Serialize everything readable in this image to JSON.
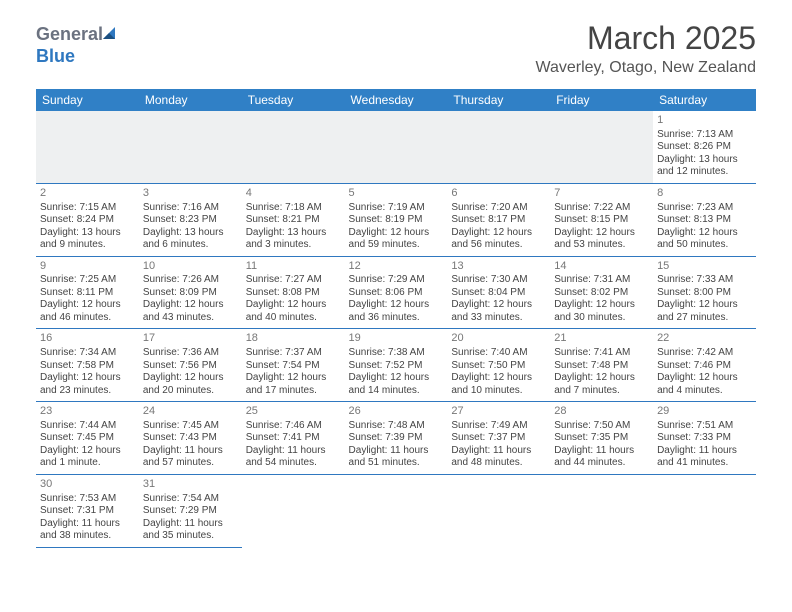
{
  "brand": {
    "general": "General",
    "blue": "Blue"
  },
  "title": "March 2025",
  "location": "Waverley, Otago, New Zealand",
  "colors": {
    "header_bg": "#3080c6",
    "header_text": "#ffffff",
    "border": "#2f78c0",
    "blank_bg": "#eef0f1",
    "text": "#444444",
    "daynum": "#777777"
  },
  "weekdays": [
    "Sunday",
    "Monday",
    "Tuesday",
    "Wednesday",
    "Thursday",
    "Friday",
    "Saturday"
  ],
  "weeks": [
    [
      null,
      null,
      null,
      null,
      null,
      null,
      {
        "day": "1",
        "sunrise": "Sunrise: 7:13 AM",
        "sunset": "Sunset: 8:26 PM",
        "daylight1": "Daylight: 13 hours",
        "daylight2": "and 12 minutes."
      }
    ],
    [
      {
        "day": "2",
        "sunrise": "Sunrise: 7:15 AM",
        "sunset": "Sunset: 8:24 PM",
        "daylight1": "Daylight: 13 hours",
        "daylight2": "and 9 minutes."
      },
      {
        "day": "3",
        "sunrise": "Sunrise: 7:16 AM",
        "sunset": "Sunset: 8:23 PM",
        "daylight1": "Daylight: 13 hours",
        "daylight2": "and 6 minutes."
      },
      {
        "day": "4",
        "sunrise": "Sunrise: 7:18 AM",
        "sunset": "Sunset: 8:21 PM",
        "daylight1": "Daylight: 13 hours",
        "daylight2": "and 3 minutes."
      },
      {
        "day": "5",
        "sunrise": "Sunrise: 7:19 AM",
        "sunset": "Sunset: 8:19 PM",
        "daylight1": "Daylight: 12 hours",
        "daylight2": "and 59 minutes."
      },
      {
        "day": "6",
        "sunrise": "Sunrise: 7:20 AM",
        "sunset": "Sunset: 8:17 PM",
        "daylight1": "Daylight: 12 hours",
        "daylight2": "and 56 minutes."
      },
      {
        "day": "7",
        "sunrise": "Sunrise: 7:22 AM",
        "sunset": "Sunset: 8:15 PM",
        "daylight1": "Daylight: 12 hours",
        "daylight2": "and 53 minutes."
      },
      {
        "day": "8",
        "sunrise": "Sunrise: 7:23 AM",
        "sunset": "Sunset: 8:13 PM",
        "daylight1": "Daylight: 12 hours",
        "daylight2": "and 50 minutes."
      }
    ],
    [
      {
        "day": "9",
        "sunrise": "Sunrise: 7:25 AM",
        "sunset": "Sunset: 8:11 PM",
        "daylight1": "Daylight: 12 hours",
        "daylight2": "and 46 minutes."
      },
      {
        "day": "10",
        "sunrise": "Sunrise: 7:26 AM",
        "sunset": "Sunset: 8:09 PM",
        "daylight1": "Daylight: 12 hours",
        "daylight2": "and 43 minutes."
      },
      {
        "day": "11",
        "sunrise": "Sunrise: 7:27 AM",
        "sunset": "Sunset: 8:08 PM",
        "daylight1": "Daylight: 12 hours",
        "daylight2": "and 40 minutes."
      },
      {
        "day": "12",
        "sunrise": "Sunrise: 7:29 AM",
        "sunset": "Sunset: 8:06 PM",
        "daylight1": "Daylight: 12 hours",
        "daylight2": "and 36 minutes."
      },
      {
        "day": "13",
        "sunrise": "Sunrise: 7:30 AM",
        "sunset": "Sunset: 8:04 PM",
        "daylight1": "Daylight: 12 hours",
        "daylight2": "and 33 minutes."
      },
      {
        "day": "14",
        "sunrise": "Sunrise: 7:31 AM",
        "sunset": "Sunset: 8:02 PM",
        "daylight1": "Daylight: 12 hours",
        "daylight2": "and 30 minutes."
      },
      {
        "day": "15",
        "sunrise": "Sunrise: 7:33 AM",
        "sunset": "Sunset: 8:00 PM",
        "daylight1": "Daylight: 12 hours",
        "daylight2": "and 27 minutes."
      }
    ],
    [
      {
        "day": "16",
        "sunrise": "Sunrise: 7:34 AM",
        "sunset": "Sunset: 7:58 PM",
        "daylight1": "Daylight: 12 hours",
        "daylight2": "and 23 minutes."
      },
      {
        "day": "17",
        "sunrise": "Sunrise: 7:36 AM",
        "sunset": "Sunset: 7:56 PM",
        "daylight1": "Daylight: 12 hours",
        "daylight2": "and 20 minutes."
      },
      {
        "day": "18",
        "sunrise": "Sunrise: 7:37 AM",
        "sunset": "Sunset: 7:54 PM",
        "daylight1": "Daylight: 12 hours",
        "daylight2": "and 17 minutes."
      },
      {
        "day": "19",
        "sunrise": "Sunrise: 7:38 AM",
        "sunset": "Sunset: 7:52 PM",
        "daylight1": "Daylight: 12 hours",
        "daylight2": "and 14 minutes."
      },
      {
        "day": "20",
        "sunrise": "Sunrise: 7:40 AM",
        "sunset": "Sunset: 7:50 PM",
        "daylight1": "Daylight: 12 hours",
        "daylight2": "and 10 minutes."
      },
      {
        "day": "21",
        "sunrise": "Sunrise: 7:41 AM",
        "sunset": "Sunset: 7:48 PM",
        "daylight1": "Daylight: 12 hours",
        "daylight2": "and 7 minutes."
      },
      {
        "day": "22",
        "sunrise": "Sunrise: 7:42 AM",
        "sunset": "Sunset: 7:46 PM",
        "daylight1": "Daylight: 12 hours",
        "daylight2": "and 4 minutes."
      }
    ],
    [
      {
        "day": "23",
        "sunrise": "Sunrise: 7:44 AM",
        "sunset": "Sunset: 7:45 PM",
        "daylight1": "Daylight: 12 hours",
        "daylight2": "and 1 minute."
      },
      {
        "day": "24",
        "sunrise": "Sunrise: 7:45 AM",
        "sunset": "Sunset: 7:43 PM",
        "daylight1": "Daylight: 11 hours",
        "daylight2": "and 57 minutes."
      },
      {
        "day": "25",
        "sunrise": "Sunrise: 7:46 AM",
        "sunset": "Sunset: 7:41 PM",
        "daylight1": "Daylight: 11 hours",
        "daylight2": "and 54 minutes."
      },
      {
        "day": "26",
        "sunrise": "Sunrise: 7:48 AM",
        "sunset": "Sunset: 7:39 PM",
        "daylight1": "Daylight: 11 hours",
        "daylight2": "and 51 minutes."
      },
      {
        "day": "27",
        "sunrise": "Sunrise: 7:49 AM",
        "sunset": "Sunset: 7:37 PM",
        "daylight1": "Daylight: 11 hours",
        "daylight2": "and 48 minutes."
      },
      {
        "day": "28",
        "sunrise": "Sunrise: 7:50 AM",
        "sunset": "Sunset: 7:35 PM",
        "daylight1": "Daylight: 11 hours",
        "daylight2": "and 44 minutes."
      },
      {
        "day": "29",
        "sunrise": "Sunrise: 7:51 AM",
        "sunset": "Sunset: 7:33 PM",
        "daylight1": "Daylight: 11 hours",
        "daylight2": "and 41 minutes."
      }
    ],
    [
      {
        "day": "30",
        "sunrise": "Sunrise: 7:53 AM",
        "sunset": "Sunset: 7:31 PM",
        "daylight1": "Daylight: 11 hours",
        "daylight2": "and 38 minutes."
      },
      {
        "day": "31",
        "sunrise": "Sunrise: 7:54 AM",
        "sunset": "Sunset: 7:29 PM",
        "daylight1": "Daylight: 11 hours",
        "daylight2": "and 35 minutes."
      },
      null,
      null,
      null,
      null,
      null
    ]
  ]
}
